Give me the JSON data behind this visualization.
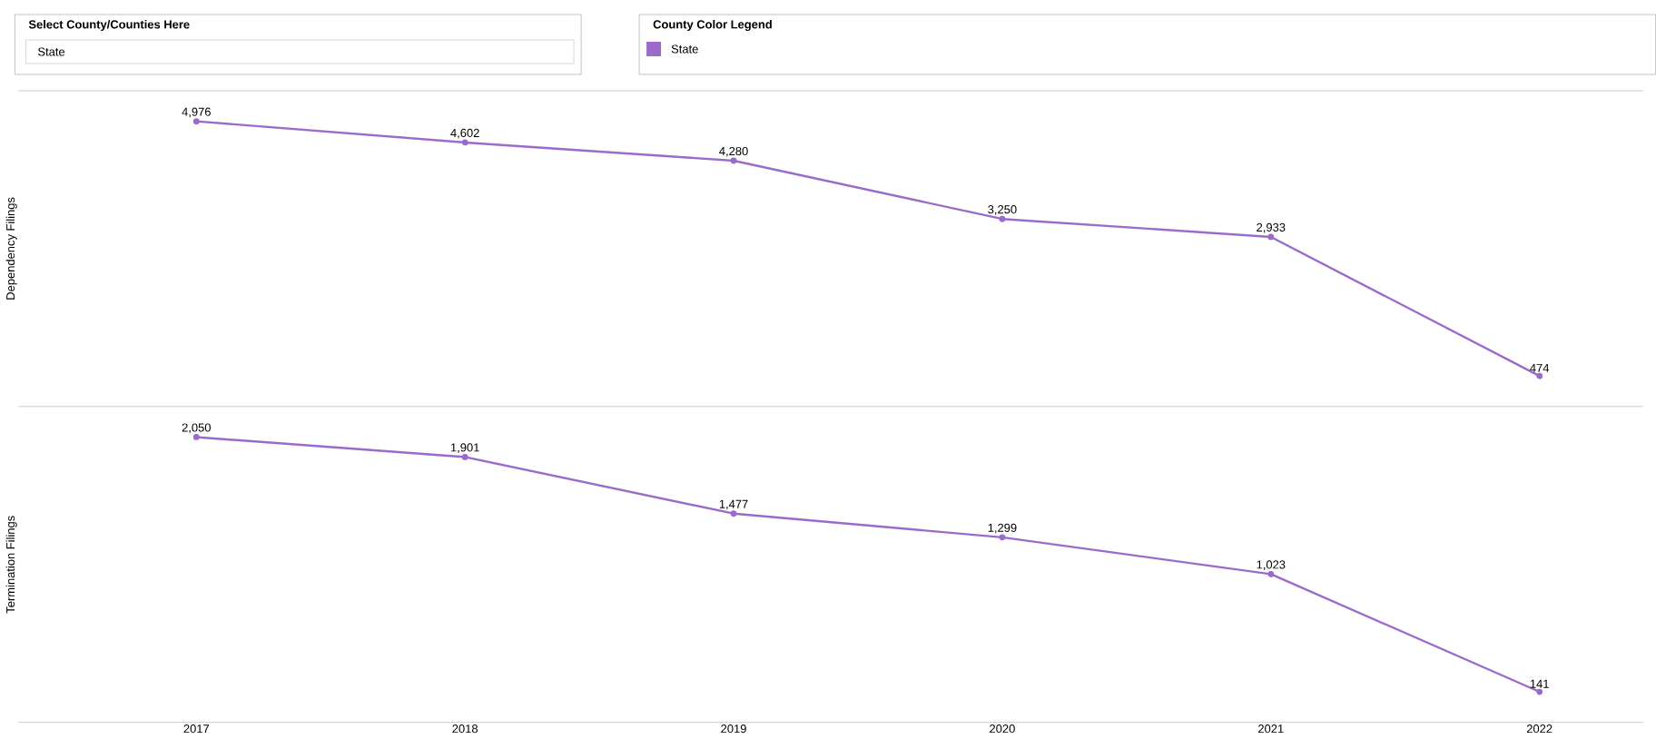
{
  "chart_data": [
    {
      "type": "line",
      "ylabel": "Dependency Filings",
      "categories": [
        "2017",
        "2018",
        "2019",
        "2020",
        "2021",
        "2022"
      ],
      "tick_labels": false,
      "marker": "circle",
      "legend": "top",
      "legend_title": "County Color Legend",
      "annotations": [
        "Select County/Counties Here",
        "State"
      ],
      "series": [
        {
          "name": "State",
          "color": "#9a6bcc",
          "values": [
            4976,
            4602,
            4280,
            3250,
            2933,
            474
          ],
          "value_labels": [
            "4,976",
            "4,602",
            "4,280",
            "3,250",
            "2,933",
            "474"
          ]
        }
      ]
    },
    {
      "type": "line",
      "ylabel": "Termination Filings",
      "categories": [
        "2017",
        "2018",
        "2019",
        "2020",
        "2021",
        "2022"
      ],
      "tick_labels": "x",
      "marker": "circle",
      "series": [
        {
          "color": "#9a6bcc",
          "values": [
            2050,
            1901,
            1477,
            1299,
            1023,
            141
          ],
          "value_labels": [
            "2,050",
            "1,901",
            "1,477",
            "1,299",
            "1,023",
            "141"
          ]
        }
      ]
    }
  ]
}
